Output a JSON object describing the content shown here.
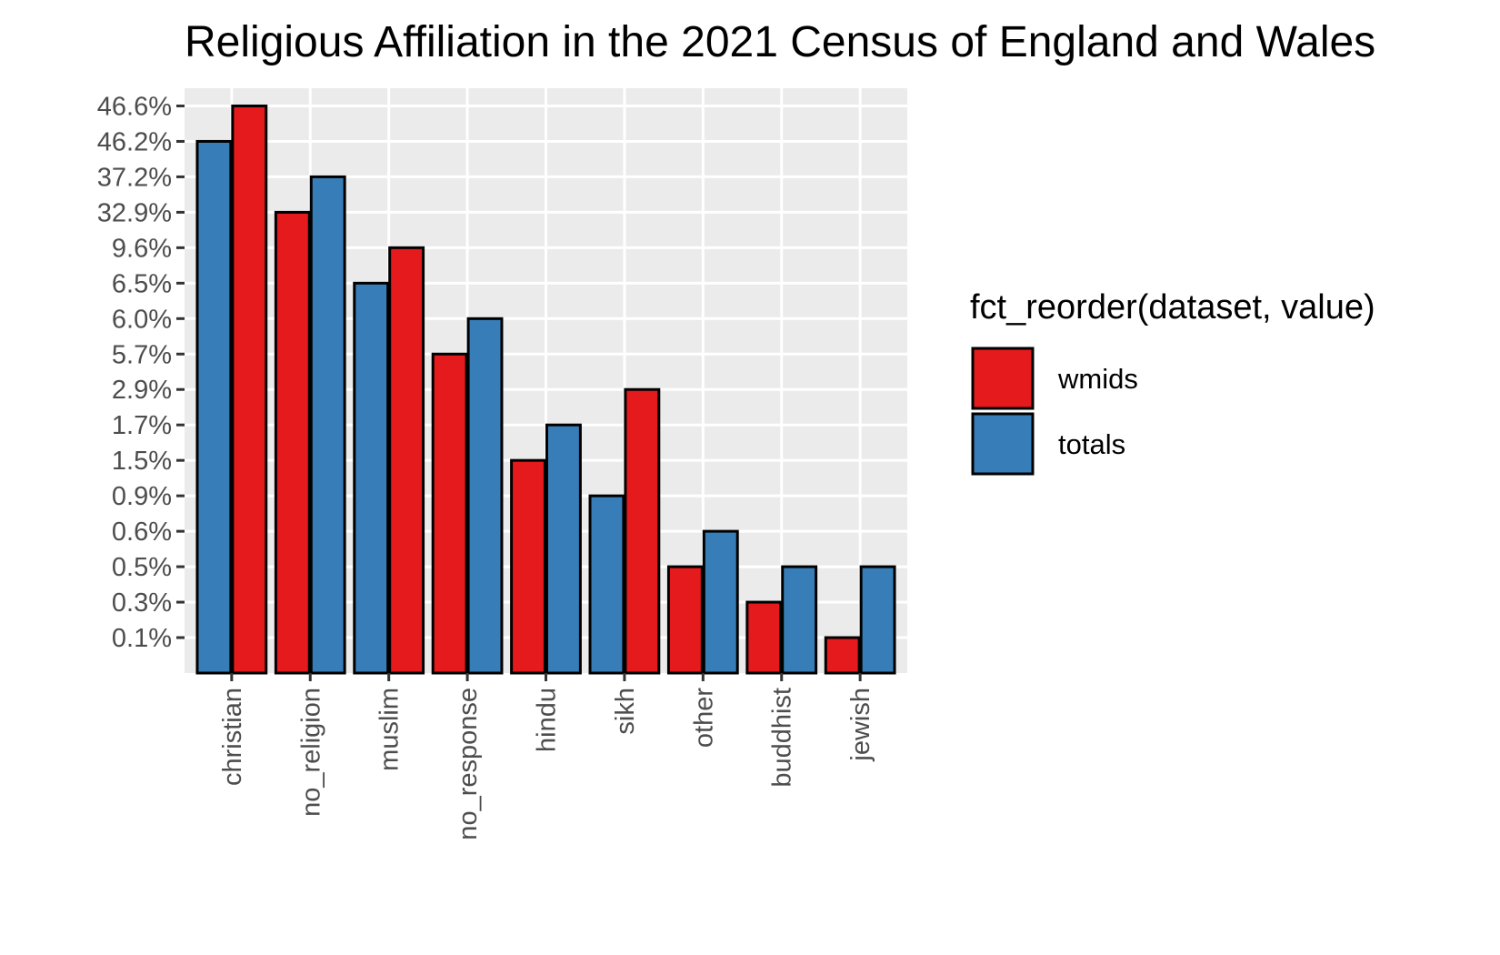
{
  "chart_data": {
    "type": "bar",
    "title": "Religious Affiliation in the 2021 Census of England and Wales",
    "xlabel": "",
    "ylabel": "",
    "categories": [
      "christian",
      "no_religion",
      "muslim",
      "no_response",
      "hindu",
      "sikh",
      "other",
      "buddhist",
      "jewish"
    ],
    "y_axis_kind": "discrete",
    "y_tick_labels": [
      "0.1%",
      "0.3%",
      "0.5%",
      "0.6%",
      "0.9%",
      "1.5%",
      "1.7%",
      "2.9%",
      "5.7%",
      "6.0%",
      "6.5%",
      "9.6%",
      "32.9%",
      "37.2%",
      "46.2%",
      "46.6%"
    ],
    "series": [
      {
        "name": "totals",
        "color": "#377EB8",
        "values": [
          "46.2%",
          "37.2%",
          "6.5%",
          "6.0%",
          "1.7%",
          "0.9%",
          "0.6%",
          "0.5%",
          "0.5%"
        ]
      },
      {
        "name": "wmids",
        "color": "#E41A1C",
        "values": [
          "46.6%",
          "32.9%",
          "9.6%",
          "5.7%",
          "1.5%",
          "2.9%",
          "0.5%",
          "0.3%",
          "0.1%"
        ]
      }
    ],
    "bar_order_within_group": "ascending-by-value",
    "grid": true,
    "panel_background": "#EBEBEB",
    "legend": {
      "title": "fct_reorder(dataset, value)",
      "position": "right",
      "entries": [
        {
          "label": "wmids",
          "color": "#E41A1C"
        },
        {
          "label": "totals",
          "color": "#377EB8"
        }
      ]
    }
  }
}
